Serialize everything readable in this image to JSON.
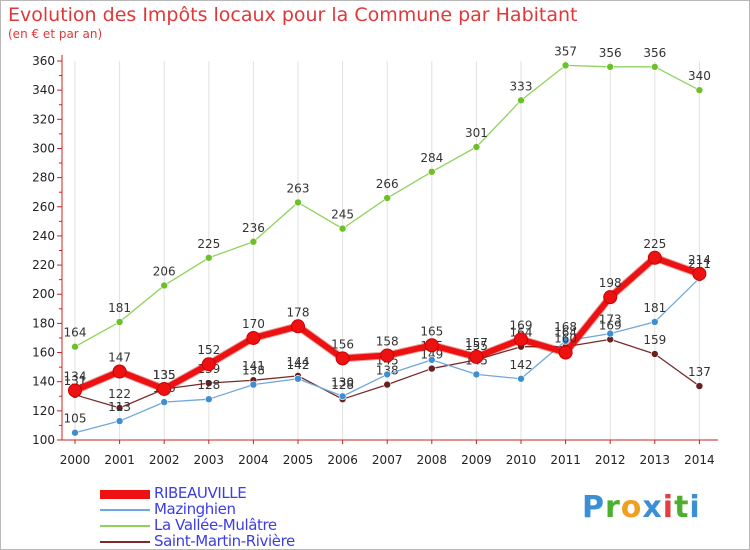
{
  "title": "Evolution des Impôts locaux pour la Commune par Habitant",
  "subtitle": "(en € et par an)",
  "logo": {
    "text": "Proxiti",
    "letters": [
      "P",
      "r",
      "o",
      "x",
      "i",
      "t",
      "i"
    ],
    "colors": [
      "#3a8fd6",
      "#4caf2e",
      "#f0a020",
      "#3a8fd6",
      "#e04040",
      "#4caf2e",
      "#3a8fd6"
    ]
  },
  "chart_data": {
    "type": "line",
    "title": "Evolution des Impôts locaux pour la Commune par Habitant",
    "subtitle": "(en € et par an)",
    "xlabel": "",
    "ylabel": "",
    "x": [
      2000,
      2001,
      2002,
      2003,
      2004,
      2005,
      2006,
      2007,
      2008,
      2009,
      2010,
      2011,
      2012,
      2013,
      2014
    ],
    "ylim": [
      100,
      360
    ],
    "yticks": [
      100,
      120,
      140,
      160,
      180,
      200,
      220,
      240,
      260,
      280,
      300,
      320,
      340,
      360
    ],
    "grid": "vertical",
    "series": [
      {
        "name": "La Vallée-Mulâtre",
        "color": "#8fd35a",
        "marker": "#6cc028",
        "width": 1.3,
        "values": [
          164,
          181,
          206,
          225,
          236,
          263,
          245,
          266,
          284,
          301,
          333,
          357,
          356,
          356,
          340
        ]
      },
      {
        "name": "Saint-Martin-Rivière",
        "color": "#7b2a2a",
        "marker": "#6a1f1f",
        "width": 1.3,
        "values": [
          131,
          122,
          135,
          139,
          141,
          144,
          128,
          138,
          149,
          155,
          164,
          164,
          169,
          159,
          137
        ]
      },
      {
        "name": "Mazinghien",
        "color": "#6fa8dc",
        "marker": "#3e8ed0",
        "width": 1.3,
        "values": [
          105,
          113,
          126,
          128,
          138,
          142,
          130,
          145,
          155,
          145,
          142,
          168,
          173,
          181,
          211
        ]
      },
      {
        "name": "RIBEAUVILLE",
        "color": "#ee1111",
        "marker": "#ee1111",
        "width": 6,
        "values": [
          134,
          147,
          135,
          152,
          170,
          178,
          156,
          158,
          165,
          157,
          169,
          160,
          198,
          225,
          214
        ]
      }
    ]
  }
}
